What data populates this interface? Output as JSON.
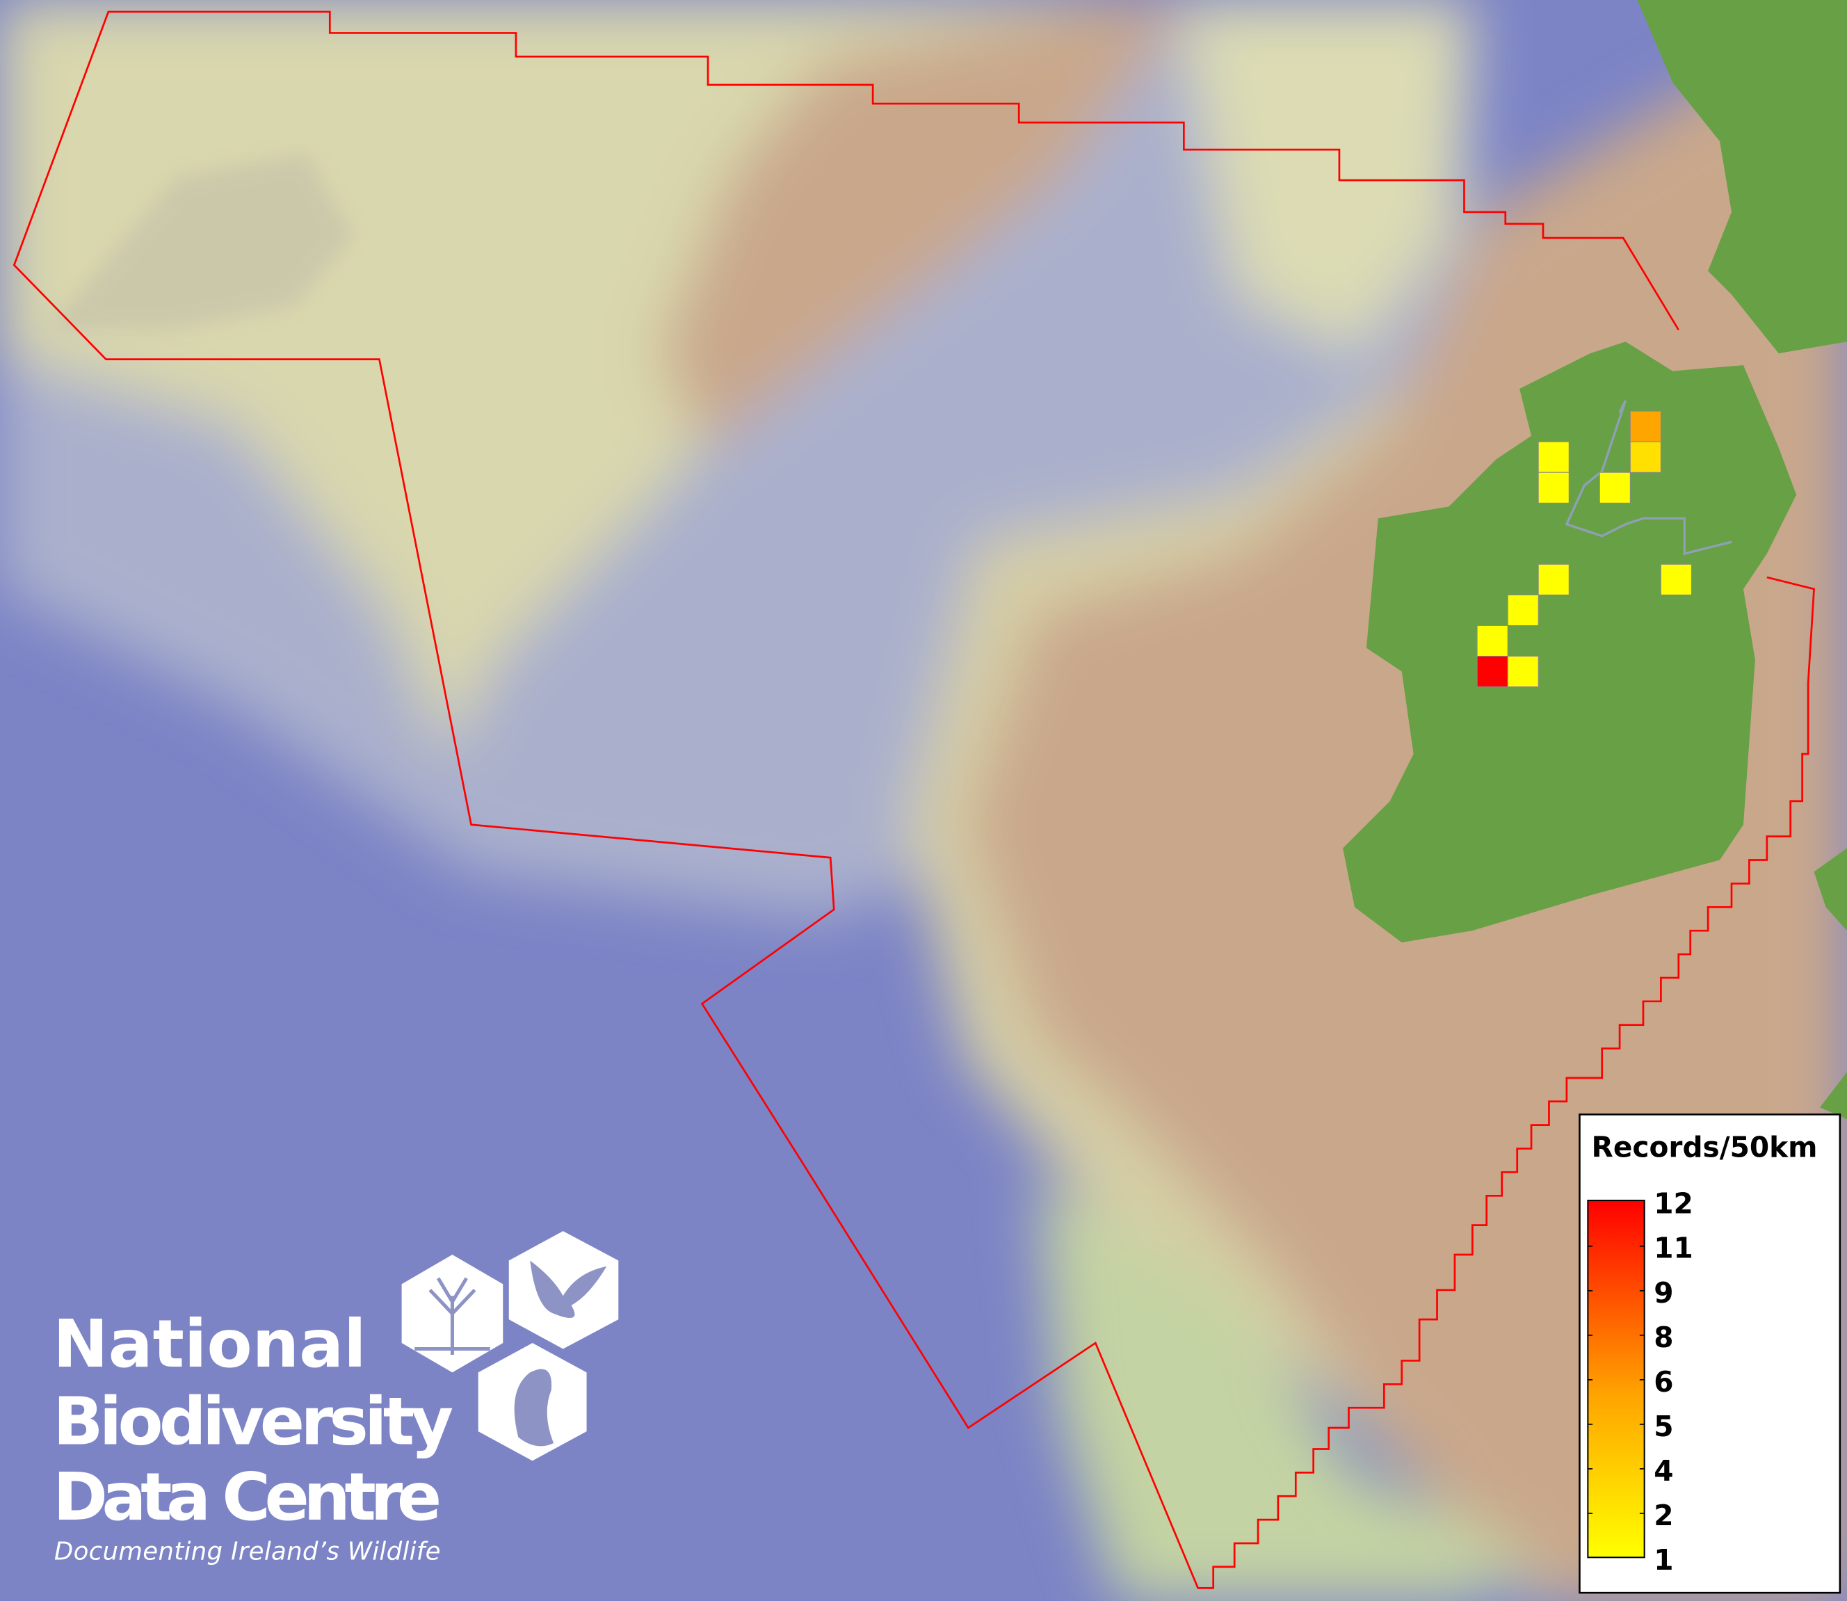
{
  "map": {
    "colors": {
      "ocean_deep": "#7c84c6",
      "shelf": "#dedcae",
      "shallow_tan": "#cba88c",
      "land": "#67a045",
      "boundary": "#ff0000"
    },
    "grid_cells": [
      {
        "value": 5,
        "color": "#ffa500"
      },
      {
        "value": 2,
        "color": "#ffe000"
      },
      {
        "value": 1,
        "color": "#ffff00"
      },
      {
        "value": 1,
        "color": "#ffff00"
      },
      {
        "value": 1,
        "color": "#ffff00"
      },
      {
        "value": 1,
        "color": "#ffff00"
      },
      {
        "value": 1,
        "color": "#ffff00"
      },
      {
        "value": 1,
        "color": "#ffff00"
      },
      {
        "value": 1,
        "color": "#ffff00"
      },
      {
        "value": 12,
        "color": "#ff0000"
      },
      {
        "value": 1,
        "color": "#ffff00"
      }
    ]
  },
  "legend": {
    "title": "Records/50km",
    "labels": [
      "12",
      "11",
      "9",
      "8",
      "6",
      "5",
      "4",
      "2",
      "1"
    ],
    "color_max": "#ff0000",
    "color_min": "#ffff00"
  },
  "logo": {
    "line1": "National",
    "line2": "Biodiversity",
    "line3": "Data Centre",
    "tagline": "Documenting Ireland’s Wildlife"
  }
}
